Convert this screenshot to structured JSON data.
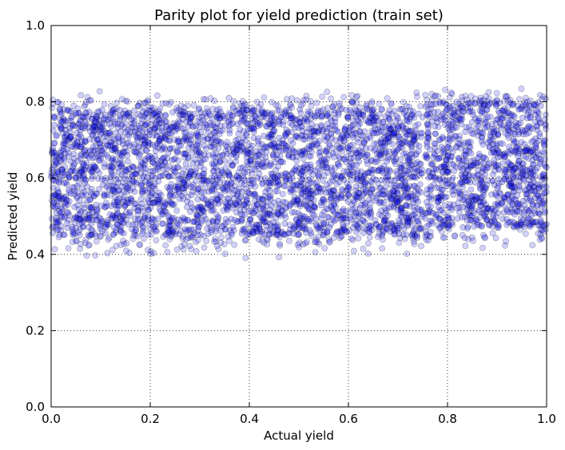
{
  "chart_data": {
    "type": "scatter",
    "title": "Parity plot for yield prediction (train set)",
    "xlabel": "Actual yield",
    "ylabel": "Predicted yield",
    "xlim": [
      0.0,
      1.0
    ],
    "ylim": [
      0.0,
      1.0
    ],
    "xticks": [
      "0.0",
      "0.2",
      "0.4",
      "0.6",
      "0.8",
      "1.0"
    ],
    "yticks": [
      "0.0",
      "0.2",
      "0.4",
      "0.6",
      "0.8",
      "1.0"
    ],
    "grid": true,
    "marker_color": "#0000ff",
    "marker_edge_color": "#000000",
    "series": [
      {
        "clusters": [
          {
            "x_range": [
              0.0,
              0.75
            ],
            "y_core": [
              0.45,
              0.78
            ],
            "y_extent": [
              0.39,
              0.83
            ]
          },
          {
            "x_range": [
              0.755,
              1.0
            ],
            "y_core": [
              0.47,
              0.8
            ],
            "y_extent": [
              0.4,
              0.835
            ]
          }
        ]
      }
    ]
  }
}
